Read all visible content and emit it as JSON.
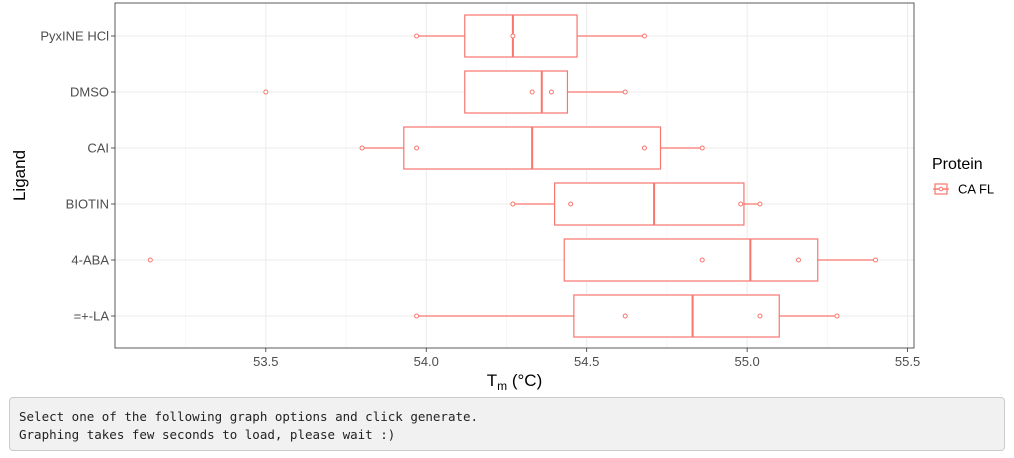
{
  "chart_data": {
    "type": "boxplot",
    "orientation": "horizontal",
    "xlabel": "Tm (°C)",
    "xlabel_main": "T",
    "xlabel_sub": "m",
    "xlabel_rest": " (°C)",
    "ylabel": "Ligand",
    "xlim": [
      53.03,
      55.52
    ],
    "x_ticks": [
      53.5,
      54.0,
      54.5,
      55.0,
      55.5
    ],
    "x_tick_labels": [
      "53.5",
      "54.0",
      "54.5",
      "55.0",
      "55.5"
    ],
    "x_minor_ticks": [
      53.25,
      53.75,
      54.25,
      54.75,
      55.25
    ],
    "grid": true,
    "legend_position": "right",
    "legend": {
      "title": "Protein",
      "entries": [
        {
          "name": "CA FL",
          "color": "#f8766d"
        }
      ]
    },
    "categories": [
      "PyxINE HCl",
      "DMSO",
      "CAI",
      "BIOTIN",
      "4-ABA",
      "=+-LA"
    ],
    "series": [
      {
        "name": "CA FL",
        "color": "#f8766d",
        "boxes": [
          {
            "category": "PyxINE HCl",
            "whisker_low": 53.97,
            "q1": 54.12,
            "median": 54.27,
            "q3": 54.47,
            "whisker_high": 54.68,
            "points": [
              53.97,
              54.27,
              54.68
            ]
          },
          {
            "category": "DMSO",
            "whisker_low": 54.12,
            "q1": 54.12,
            "median": 54.36,
            "q3": 54.44,
            "whisker_high": 54.62,
            "points": [
              53.5,
              54.33,
              54.39,
              54.62
            ]
          },
          {
            "category": "CAI",
            "whisker_low": 53.8,
            "q1": 53.93,
            "median": 54.33,
            "q3": 54.73,
            "whisker_high": 54.86,
            "points": [
              53.8,
              53.97,
              54.68,
              54.86
            ]
          },
          {
            "category": "BIOTIN",
            "whisker_low": 54.27,
            "q1": 54.4,
            "median": 54.71,
            "q3": 54.99,
            "whisker_high": 55.04,
            "points": [
              54.27,
              54.45,
              54.98,
              55.04
            ]
          },
          {
            "category": "4-ABA",
            "whisker_low": 54.43,
            "q1": 54.43,
            "median": 55.01,
            "q3": 55.22,
            "whisker_high": 55.4,
            "points": [
              53.14,
              54.86,
              55.16,
              55.4
            ]
          },
          {
            "category": "=+-LA",
            "whisker_low": 53.97,
            "q1": 54.46,
            "median": 54.83,
            "q3": 55.1,
            "whisker_high": 55.28,
            "points": [
              53.97,
              54.62,
              55.04,
              55.28
            ]
          }
        ]
      }
    ]
  },
  "message": {
    "line1": "Select one of the following graph options and click generate.",
    "line2": "Graphing takes few seconds to load, please wait :)"
  }
}
